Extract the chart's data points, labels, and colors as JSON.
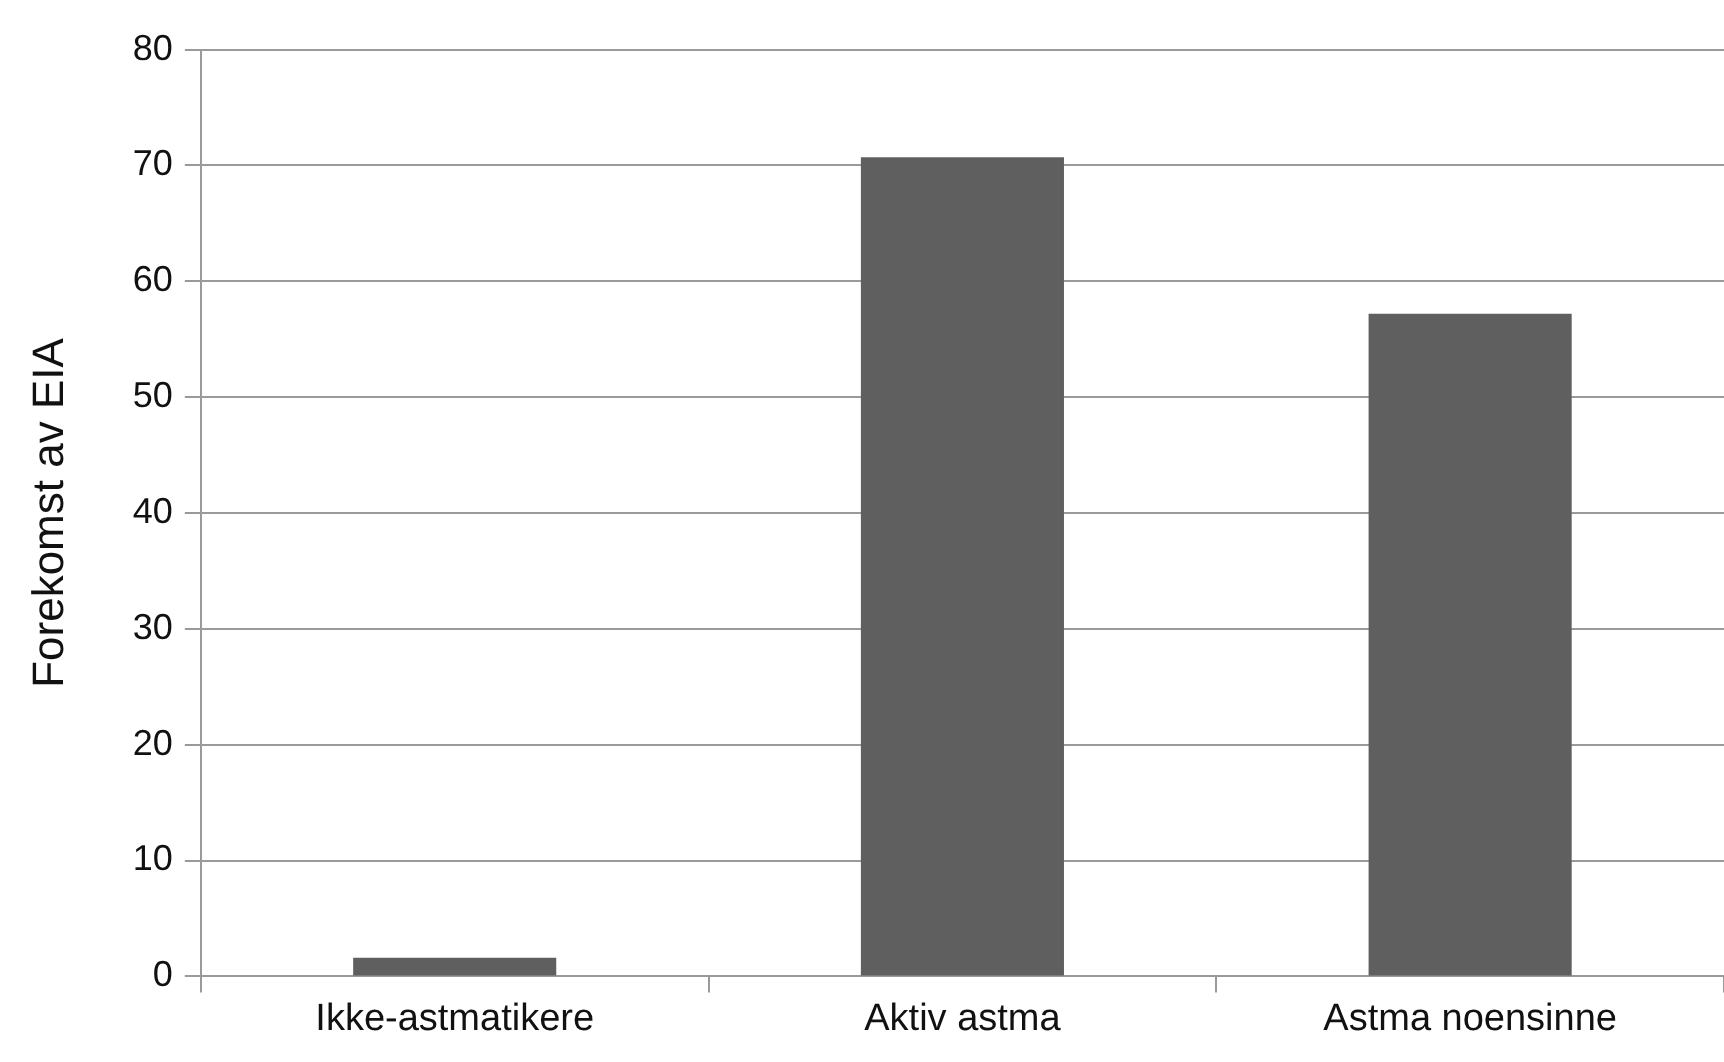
{
  "chart_data": {
    "type": "bar",
    "ylabel": "Forekomst av EIA",
    "categories": [
      "Ikke-astmatikere",
      "Aktiv astma",
      "Astma noensinne"
    ],
    "values": [
      1.6,
      70.7,
      57.2
    ],
    "color": "#5f5f5f",
    "ylim": [
      0,
      80
    ],
    "yticks": [
      0,
      10,
      20,
      30,
      40,
      50,
      60,
      70,
      80
    ],
    "grid": "y",
    "legend": false
  }
}
